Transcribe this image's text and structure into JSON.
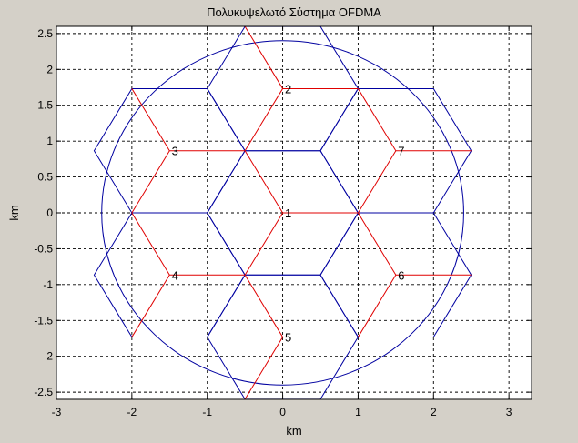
{
  "chart_data": {
    "type": "line",
    "title": "Πολυκυψελωτό Σύστημα OFDMA",
    "xlabel": "km",
    "ylabel": "km",
    "xlim": [
      -3.0,
      3.3
    ],
    "ylim": [
      -2.6,
      2.6
    ],
    "grid": true,
    "xticks": [
      -3,
      -2,
      -1,
      0,
      1,
      2,
      3
    ],
    "yticks": [
      -2.5,
      -2,
      -1.5,
      -1,
      -0.5,
      0,
      0.5,
      1,
      1.5,
      2,
      2.5
    ],
    "xtick_labels": [
      "-3",
      "-2",
      "-1",
      "0",
      "1",
      "2",
      "3"
    ],
    "ytick_labels": [
      "-2.5",
      "-2",
      "-1.5",
      "-1",
      "-0.5",
      "0",
      "0.5",
      "1",
      "1.5",
      "2",
      "2.5"
    ],
    "hexagon_radius": 1,
    "circle": {
      "center": [
        0,
        0
      ],
      "radius": 2.4,
      "color": "#0000a0"
    },
    "colors": {
      "hexagon": "#0000a0",
      "sector": "#e00000",
      "background": "#ffffff",
      "figure": "#d4d0c8"
    },
    "cells": [
      {
        "label": "1",
        "center": [
          0,
          0
        ]
      },
      {
        "label": "2",
        "center": [
          0,
          1.732
        ]
      },
      {
        "label": "3",
        "center": [
          -1.5,
          0.866
        ]
      },
      {
        "label": "4",
        "center": [
          -1.5,
          -0.866
        ]
      },
      {
        "label": "5",
        "center": [
          0,
          -1.732
        ]
      },
      {
        "label": "6",
        "center": [
          1.5,
          -0.866
        ]
      },
      {
        "label": "7",
        "center": [
          1.5,
          0.866
        ]
      }
    ]
  }
}
